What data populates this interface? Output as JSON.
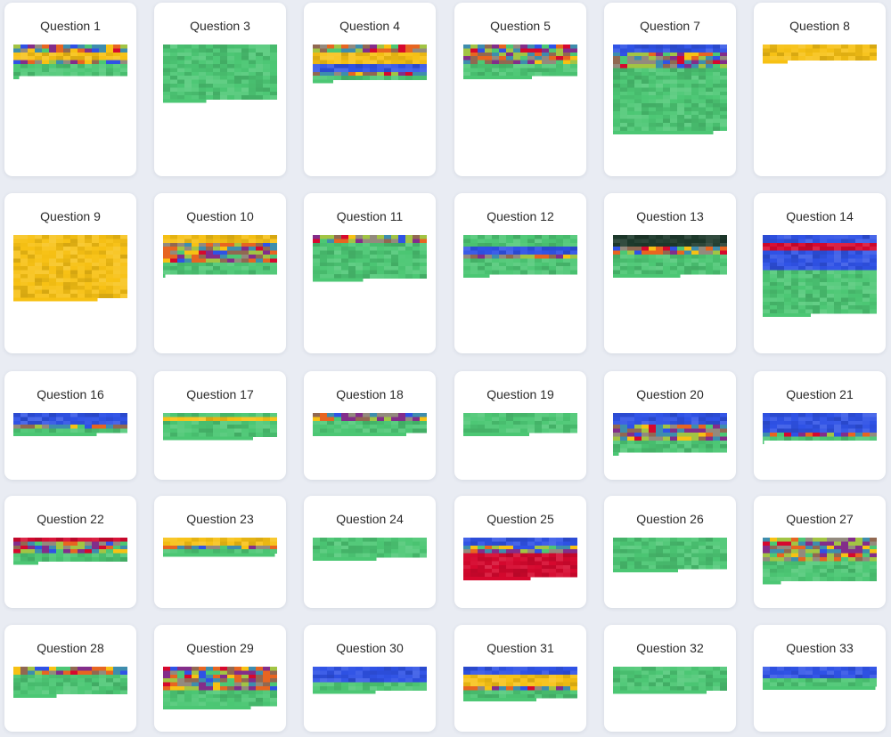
{
  "palette": {
    "green": "#4cc774",
    "yellow": "#f7c114",
    "blue": "#2f52e6",
    "red": "#d6082e",
    "dark": "#1e3a2c"
  },
  "chart_data": [
    {
      "type": "heatmap",
      "title": "Question 1",
      "rows": 8,
      "bands": [
        [
          "mix",
          2
        ],
        [
          "yellow",
          2
        ],
        [
          "mix",
          1
        ],
        [
          "green",
          3
        ]
      ],
      "tail": 0.05
    },
    {
      "type": "heatmap",
      "title": "Question 3",
      "rows": 14,
      "bands": [
        [
          "green",
          14
        ]
      ],
      "tail": 0.38
    },
    {
      "type": "heatmap",
      "title": "Question 4",
      "rows": 9,
      "bands": [
        [
          "mix",
          2
        ],
        [
          "yellow",
          3
        ],
        [
          "blue",
          2
        ],
        [
          "mix",
          1
        ],
        [
          "green",
          1
        ]
      ],
      "tail": 0.18
    },
    {
      "type": "heatmap",
      "title": "Question 5",
      "rows": 8,
      "bands": [
        [
          "mix",
          3
        ],
        [
          "mix",
          2
        ],
        [
          "green",
          3
        ]
      ],
      "tail": 0.6
    },
    {
      "type": "heatmap",
      "title": "Question 7",
      "rows": 22,
      "bands": [
        [
          "blue",
          2
        ],
        [
          "mix",
          4
        ],
        [
          "green",
          16
        ]
      ],
      "tail": 0.88
    },
    {
      "type": "heatmap",
      "title": "Question 8",
      "rows": 4,
      "bands": [
        [
          "yellow",
          4
        ]
      ],
      "tail": 0.22
    },
    {
      "type": "heatmap",
      "title": "Question 9",
      "rows": 16,
      "bands": [
        [
          "yellow",
          16
        ]
      ],
      "tail": 0.74
    },
    {
      "type": "heatmap",
      "title": "Question 10",
      "rows": 10,
      "bands": [
        [
          "yellow",
          2
        ],
        [
          "mix",
          5
        ],
        [
          "green",
          3
        ]
      ],
      "tail": 0.02
    },
    {
      "type": "heatmap",
      "title": "Question 11",
      "rows": 11,
      "bands": [
        [
          "mix",
          2
        ],
        [
          "green",
          9
        ]
      ],
      "tail": 0.44
    },
    {
      "type": "heatmap",
      "title": "Question 12",
      "rows": 10,
      "bands": [
        [
          "green",
          3
        ],
        [
          "blue",
          2
        ],
        [
          "mix",
          1
        ],
        [
          "green",
          4
        ]
      ],
      "tail": 0.23
    },
    {
      "type": "heatmap",
      "title": "Question 13",
      "rows": 10,
      "bands": [
        [
          "dark",
          3
        ],
        [
          "mix",
          2
        ],
        [
          "green",
          5
        ]
      ],
      "tail": 0.59
    },
    {
      "type": "heatmap",
      "title": "Question 14",
      "rows": 20,
      "bands": [
        [
          "blue",
          2
        ],
        [
          "red",
          2
        ],
        [
          "blue",
          5
        ],
        [
          "green",
          11
        ]
      ],
      "tail": 0.42
    },
    {
      "type": "heatmap",
      "title": "Question 16",
      "rows": 5,
      "bands": [
        [
          "blue",
          3
        ],
        [
          "mix",
          1
        ],
        [
          "green",
          1
        ]
      ],
      "tail": 0.73
    },
    {
      "type": "heatmap",
      "title": "Question 17",
      "rows": 6,
      "bands": [
        [
          "green",
          1
        ],
        [
          "yellow",
          1
        ],
        [
          "green",
          4
        ]
      ],
      "tail": 0.79
    },
    {
      "type": "heatmap",
      "title": "Question 18",
      "rows": 5,
      "bands": [
        [
          "mix",
          2
        ],
        [
          "green",
          3
        ]
      ],
      "tail": 0.82
    },
    {
      "type": "heatmap",
      "title": "Question 19",
      "rows": 5,
      "bands": [
        [
          "green",
          5
        ]
      ],
      "tail": 0.58
    },
    {
      "type": "heatmap",
      "title": "Question 20",
      "rows": 10,
      "bands": [
        [
          "blue",
          3
        ],
        [
          "mix",
          4
        ],
        [
          "green",
          3
        ]
      ],
      "tail": 0.05
    },
    {
      "type": "heatmap",
      "title": "Question 21",
      "rows": 7,
      "bands": [
        [
          "blue",
          5
        ],
        [
          "mix",
          1
        ],
        [
          "green",
          1
        ]
      ],
      "tail": 0.01
    },
    {
      "type": "heatmap",
      "title": "Question 22",
      "rows": 6,
      "bands": [
        [
          "red",
          1
        ],
        [
          "mix",
          3
        ],
        [
          "green",
          2
        ]
      ],
      "tail": 0.22
    },
    {
      "type": "heatmap",
      "title": "Question 23",
      "rows": 4,
      "bands": [
        [
          "yellow",
          2
        ],
        [
          "mix",
          1
        ],
        [
          "green",
          1
        ]
      ],
      "tail": 0.98
    },
    {
      "type": "heatmap",
      "title": "Question 24",
      "rows": 5,
      "bands": [
        [
          "green",
          5
        ]
      ],
      "tail": 0.56
    },
    {
      "type": "heatmap",
      "title": "Question 25",
      "rows": 10,
      "bands": [
        [
          "blue",
          2
        ],
        [
          "mix",
          2
        ],
        [
          "red",
          6
        ]
      ],
      "tail": 0.59
    },
    {
      "type": "heatmap",
      "title": "Question 26",
      "rows": 8,
      "bands": [
        [
          "green",
          8
        ]
      ],
      "tail": 0.57
    },
    {
      "type": "heatmap",
      "title": "Question 27",
      "rows": 11,
      "bands": [
        [
          "mix",
          6
        ],
        [
          "green",
          5
        ]
      ],
      "tail": 0.16
    },
    {
      "type": "heatmap",
      "title": "Question 28",
      "rows": 7,
      "bands": [
        [
          "mix",
          2
        ],
        [
          "green",
          5
        ]
      ],
      "tail": 0.38
    },
    {
      "type": "heatmap",
      "title": "Question 29",
      "rows": 10,
      "bands": [
        [
          "mix",
          6
        ],
        [
          "green",
          4
        ]
      ],
      "tail": 0.77
    },
    {
      "type": "heatmap",
      "title": "Question 30",
      "rows": 6,
      "bands": [
        [
          "blue",
          4
        ],
        [
          "green",
          2
        ]
      ],
      "tail": 0.55
    },
    {
      "type": "heatmap",
      "title": "Question 31",
      "rows": 8,
      "bands": [
        [
          "blue",
          2
        ],
        [
          "yellow",
          3
        ],
        [
          "mix",
          1
        ],
        [
          "green",
          2
        ]
      ],
      "tail": 0.64
    },
    {
      "type": "heatmap",
      "title": "Question 32",
      "rows": 6,
      "bands": [
        [
          "green",
          6
        ]
      ],
      "tail": 0.82
    },
    {
      "type": "heatmap",
      "title": "Question 33",
      "rows": 5,
      "bands": [
        [
          "blue",
          3
        ],
        [
          "green",
          2
        ]
      ],
      "tail": 0.99
    }
  ]
}
